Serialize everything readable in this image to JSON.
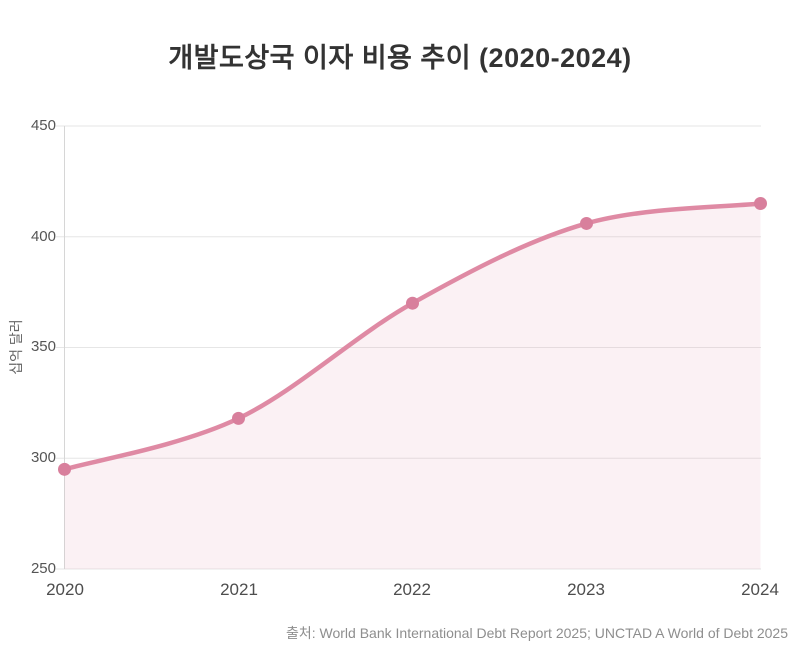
{
  "page": {
    "title": "개발도상국 이자 비용 추이 (2020-2024)",
    "source": "출처: World Bank International Debt Report 2025; UNCTAD A World of Debt 2025"
  },
  "chart_data": {
    "type": "area",
    "title": "개발도상국 이자 비용 추이 (2020-2024)",
    "categories": [
      "2020",
      "2021",
      "2022",
      "2023",
      "2024"
    ],
    "series": [
      {
        "name": "이자 비용",
        "values": [
          295,
          318,
          370,
          406,
          415
        ]
      }
    ],
    "xlabel": "",
    "ylabel": "십억 달러",
    "ylim": [
      250,
      450
    ],
    "yticks": [
      250,
      300,
      350,
      400,
      450
    ],
    "grid": true,
    "legend": false,
    "colors": {
      "line": "#df8aa4",
      "marker": "#d87f9c",
      "fill": "rgba(224,139,163,0.12)",
      "gridline": "#e6e6e6",
      "axis": "#d6d6d6"
    },
    "source": "출처: World Bank International Debt Report 2025; UNCTAD A World of Debt 2025"
  }
}
